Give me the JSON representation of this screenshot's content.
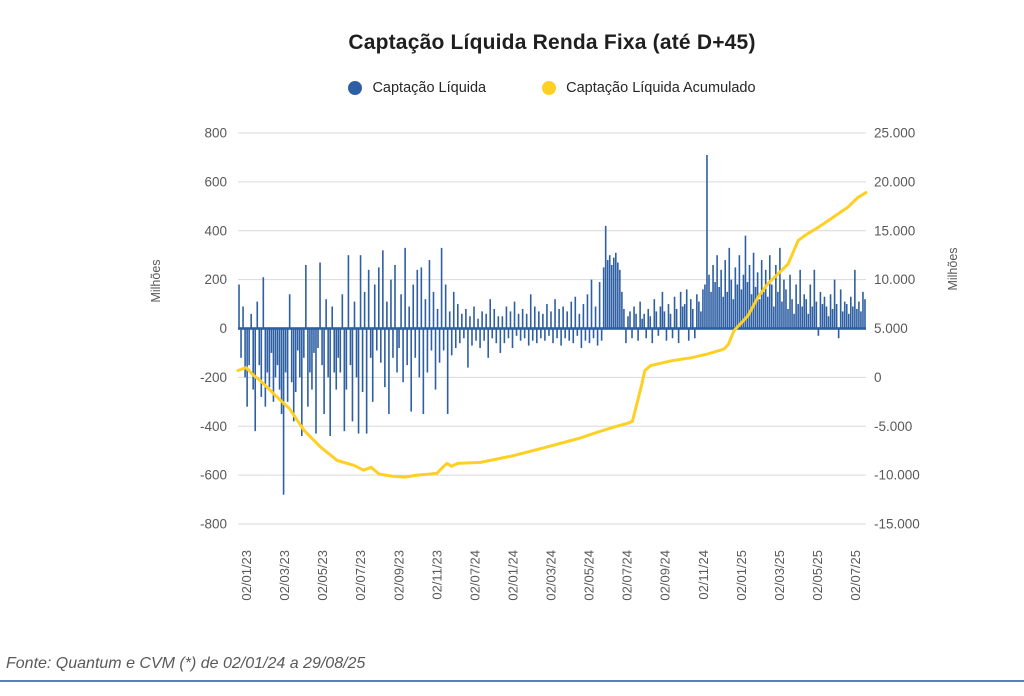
{
  "chart_data": {
    "type": "combo-bar-line",
    "title": "Captação Líquida Renda Fixa (até D+45)",
    "legend": [
      {
        "label": "Captação Líquida",
        "series": "bars",
        "color": "#2E5FA3"
      },
      {
        "label": "Captação Líquida Acumulado",
        "series": "line",
        "color": "#FFD024"
      }
    ],
    "grid": true,
    "colors": {
      "bar": "#2E5FA3",
      "line": "#FFD024",
      "grid": "#D9D9D9",
      "axis_text": "#595959",
      "title_text": "#1f1f1f"
    },
    "left_axis": {
      "title": "Milhões",
      "range": [
        -800,
        800
      ],
      "tick_labels": [
        "800",
        "600",
        "400",
        "200",
        "0",
        "-200",
        "-400",
        "-600",
        "-800"
      ]
    },
    "right_axis": {
      "title": "Milhões",
      "range": [
        -15000,
        25000
      ],
      "tick_labels": [
        "25.000",
        "20.000",
        "15.000",
        "10.000",
        "5.000",
        "0",
        "-5.000",
        "-10.000",
        "-15.000"
      ]
    },
    "x_axis": {
      "tick_labels": [
        "02/01/23",
        "02/03/23",
        "02/05/23",
        "02/07/23",
        "02/09/23",
        "02/11/23",
        "02/07/24",
        "02/01/24",
        "02/03/24",
        "02/05/24",
        "02/07/24",
        "02/09/24",
        "02/11/24",
        "02/01/25",
        "02/03/25",
        "02/05/25",
        "02/07/25"
      ]
    },
    "bars": {
      "name": "Captação Líquida",
      "unit": "Milhões",
      "values": [
        180,
        -120,
        90,
        -200,
        -320,
        -150,
        60,
        -250,
        -420,
        110,
        -150,
        -280,
        210,
        -320,
        -180,
        -240,
        -100,
        -300,
        -200,
        -150,
        -250,
        -350,
        -680,
        -180,
        -300,
        140,
        -220,
        -380,
        -260,
        -90,
        -200,
        -440,
        -120,
        260,
        -320,
        -180,
        -250,
        -100,
        -430,
        -80,
        270,
        -150,
        -350,
        120,
        -200,
        -440,
        90,
        -180,
        -250,
        -120,
        -180,
        140,
        -420,
        -250,
        300,
        -150,
        -380,
        110,
        -200,
        -430,
        300,
        -260,
        150,
        -430,
        240,
        -120,
        -300,
        180,
        -90,
        250,
        -140,
        320,
        -240,
        110,
        -350,
        200,
        -120,
        260,
        -180,
        -80,
        140,
        -220,
        330,
        -150,
        90,
        -340,
        180,
        -120,
        240,
        -200,
        250,
        -350,
        120,
        -180,
        280,
        -90,
        150,
        -250,
        80,
        -140,
        330,
        -90,
        180,
        -350,
        70,
        -110,
        150,
        -80,
        100,
        -60,
        60,
        -40,
        80,
        -160,
        50,
        -70,
        90,
        -50,
        40,
        -80,
        70,
        -50,
        60,
        -120,
        120,
        -40,
        80,
        -60,
        50,
        -100,
        50,
        -60,
        90,
        -40,
        70,
        -80,
        110,
        -30,
        60,
        -50,
        80,
        -40,
        60,
        -70,
        140,
        -50,
        90,
        -60,
        70,
        -40,
        60,
        -50,
        100,
        -30,
        70,
        -60,
        120,
        -40,
        80,
        -70,
        90,
        -40,
        70,
        -50,
        110,
        -60,
        130,
        -30,
        60,
        -80,
        100,
        -50,
        140,
        -60,
        200,
        -40,
        90,
        -70,
        190,
        -50,
        250,
        420,
        280,
        300,
        260,
        290,
        310,
        270,
        240,
        150,
        80,
        -60,
        50,
        70,
        -40,
        90,
        60,
        -50,
        110,
        40,
        60,
        -40,
        80,
        50,
        -60,
        120,
        70,
        -30,
        90,
        150,
        70,
        -50,
        100,
        60,
        -40,
        130,
        80,
        -60,
        150,
        90,
        100,
        160,
        -50,
        120,
        80,
        -40,
        140,
        110,
        70,
        160,
        180,
        710,
        220,
        150,
        260,
        190,
        300,
        170,
        240,
        130,
        280,
        150,
        330,
        200,
        120,
        250,
        180,
        300,
        160,
        220,
        380,
        190,
        260,
        140,
        310,
        170,
        230,
        120,
        280,
        150,
        240,
        130,
        300,
        180,
        90,
        260,
        150,
        330,
        110,
        200,
        160,
        80,
        220,
        120,
        60,
        180,
        100,
        240,
        90,
        140,
        120,
        60,
        180,
        90,
        240,
        110,
        -30,
        150,
        100,
        130,
        90,
        50,
        140,
        80,
        200,
        100,
        -40,
        160,
        70,
        110,
        100,
        60,
        130,
        90,
        240,
        80,
        110,
        70,
        150,
        120
      ]
    },
    "line": {
      "name": "Captação Líquida Acumulado",
      "unit": "Milhões",
      "points": [
        [
          0.0,
          700
        ],
        [
          0.013,
          1000
        ],
        [
          0.025,
          200
        ],
        [
          0.035,
          -300
        ],
        [
          0.051,
          -1300
        ],
        [
          0.067,
          -2300
        ],
        [
          0.082,
          -3200
        ],
        [
          0.105,
          -5400
        ],
        [
          0.131,
          -7100
        ],
        [
          0.158,
          -8500
        ],
        [
          0.185,
          -9000
        ],
        [
          0.2,
          -9500
        ],
        [
          0.212,
          -9200
        ],
        [
          0.225,
          -9900
        ],
        [
          0.245,
          -10100
        ],
        [
          0.265,
          -10200
        ],
        [
          0.285,
          -10000
        ],
        [
          0.305,
          -9900
        ],
        [
          0.317,
          -9800
        ],
        [
          0.326,
          -9200
        ],
        [
          0.333,
          -8800
        ],
        [
          0.34,
          -9100
        ],
        [
          0.35,
          -8800
        ],
        [
          0.386,
          -8700
        ],
        [
          0.439,
          -8000
        ],
        [
          0.493,
          -7100
        ],
        [
          0.545,
          -6200
        ],
        [
          0.573,
          -5600
        ],
        [
          0.598,
          -5100
        ],
        [
          0.62,
          -4700
        ],
        [
          0.628,
          -4500
        ],
        [
          0.636,
          -2500
        ],
        [
          0.643,
          -700
        ],
        [
          0.648,
          700
        ],
        [
          0.657,
          1200
        ],
        [
          0.69,
          1700
        ],
        [
          0.721,
          2000
        ],
        [
          0.748,
          2400
        ],
        [
          0.774,
          2900
        ],
        [
          0.781,
          3400
        ],
        [
          0.79,
          4800
        ],
        [
          0.802,
          5600
        ],
        [
          0.812,
          6300
        ],
        [
          0.828,
          8200
        ],
        [
          0.844,
          9600
        ],
        [
          0.86,
          10600
        ],
        [
          0.876,
          11600
        ],
        [
          0.892,
          14000
        ],
        [
          0.907,
          14700
        ],
        [
          0.923,
          15300
        ],
        [
          0.939,
          16000
        ],
        [
          0.955,
          16700
        ],
        [
          0.971,
          17400
        ],
        [
          0.987,
          18400
        ],
        [
          1.0,
          18900
        ]
      ]
    }
  },
  "footer": {
    "text": "Fonte: Quantum e CVM (*) de 02/01/24 a 29/08/25"
  },
  "bottom_rule": {
    "color": "#5B7FBD"
  }
}
